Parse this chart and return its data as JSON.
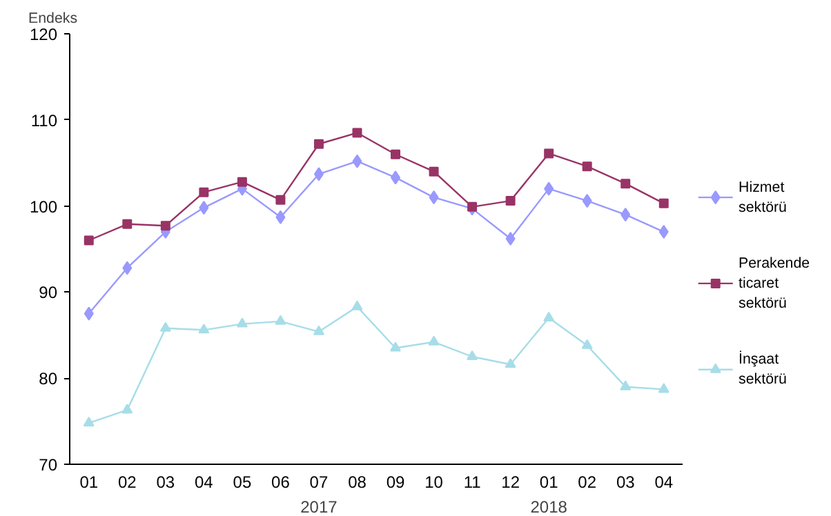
{
  "chart_data": {
    "type": "line",
    "ylabel": "Endeks",
    "categories": [
      "01",
      "02",
      "03",
      "04",
      "05",
      "06",
      "07",
      "08",
      "09",
      "10",
      "11",
      "12",
      "01",
      "02",
      "03",
      "04"
    ],
    "ylim": [
      70,
      120
    ],
    "yticks": [
      70,
      80,
      90,
      100,
      110,
      120
    ],
    "legend": "right",
    "line_style": "solid",
    "annotations": [
      "2017",
      "2018"
    ],
    "series": [
      {
        "name": "Hizmet\nsektörü",
        "color": "#9999ff",
        "marker": "diamond",
        "values": [
          87.5,
          92.8,
          97,
          99.8,
          102,
          98.7,
          103.7,
          105.2,
          103.3,
          101,
          99.7,
          96.2,
          102,
          100.6,
          99,
          97
        ]
      },
      {
        "name": "Perakende\nticaret\nsektörü",
        "color": "#993366",
        "marker": "square",
        "values": [
          96,
          97.9,
          97.7,
          101.6,
          102.8,
          100.7,
          107.2,
          108.5,
          106,
          104,
          99.9,
          100.6,
          106.1,
          104.6,
          102.6,
          100.3
        ]
      },
      {
        "name": "İnşaat\nsektörü",
        "color": "#a6dde8",
        "marker": "triangle",
        "values": [
          74.8,
          76.3,
          85.8,
          85.6,
          86.3,
          86.6,
          85.4,
          88.3,
          83.5,
          84.2,
          82.5,
          81.6,
          87,
          83.8,
          79,
          78.7
        ]
      }
    ]
  }
}
